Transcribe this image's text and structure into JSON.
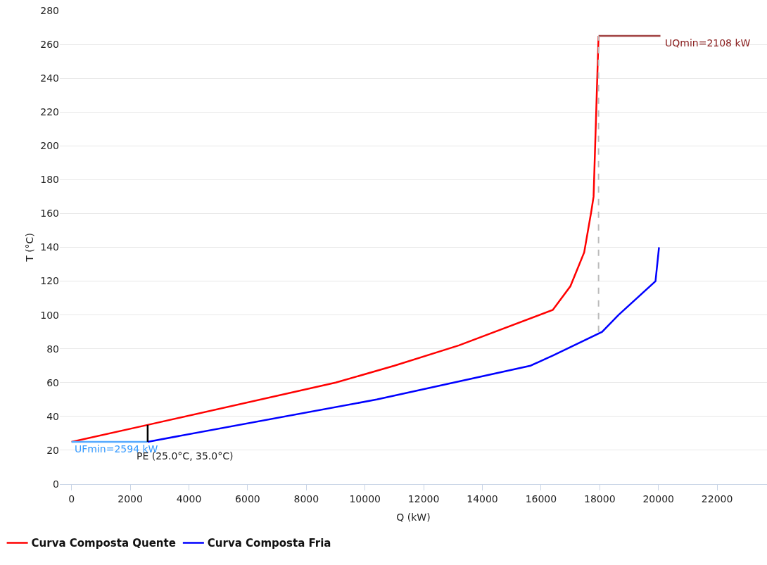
{
  "chart_data": {
    "type": "line",
    "xlabel": "Q (kW)",
    "ylabel": "T (°C)",
    "xlim": [
      -400,
      23700
    ],
    "xticks": [
      0,
      2000,
      4000,
      6000,
      8000,
      10000,
      12000,
      14000,
      16000,
      18000,
      20000,
      22000
    ],
    "ylim": [
      0,
      280
    ],
    "yticks": [
      0,
      20,
      40,
      60,
      80,
      100,
      120,
      140,
      160,
      180,
      200,
      220,
      240,
      260,
      280
    ],
    "grid": "y",
    "legend": "bottom left",
    "marker": "none",
    "line_style": "solid",
    "series": [
      {
        "name": "Curva Composta Quente",
        "color": "#ff0000",
        "x": [
          0,
          2594,
          9000,
          11000,
          13200,
          16400,
          17000,
          17470,
          17710,
          17790,
          17960
        ],
        "values": [
          25,
          35,
          60,
          70,
          82,
          103,
          117,
          137,
          161,
          170,
          265
        ]
      },
      {
        "name": "Curva Composta Fria",
        "color": "#0000ff",
        "x": [
          2594,
          10400,
          15640,
          16400,
          18080,
          18640,
          19900,
          20020
        ],
        "values": [
          25,
          50,
          70,
          76,
          90,
          100,
          120,
          140
        ]
      },
      {
        "color": "#a04040",
        "x": [
          17960,
          20068
        ],
        "values": [
          265,
          265
        ]
      },
      {
        "color": "#55aaff",
        "x": [
          0,
          2594
        ],
        "values": [
          25,
          25
        ]
      },
      {
        "color": "#bbbbbb",
        "line_style": "dashed",
        "x": [
          17960,
          17960
        ],
        "values": [
          90,
          265
        ]
      },
      {
        "color": "#000000",
        "x": [
          2594,
          2594
        ],
        "values": [
          25,
          35
        ]
      }
    ],
    "annotations": [
      {
        "text": "UQmin=2108 kW",
        "x": 20068,
        "y": 265
      },
      {
        "text": "UFmin=2594 kW",
        "x": 0,
        "y": 25
      },
      {
        "text": "PE (25.0°C, 35.0°C)",
        "x": 2594,
        "y": 25
      }
    ]
  }
}
